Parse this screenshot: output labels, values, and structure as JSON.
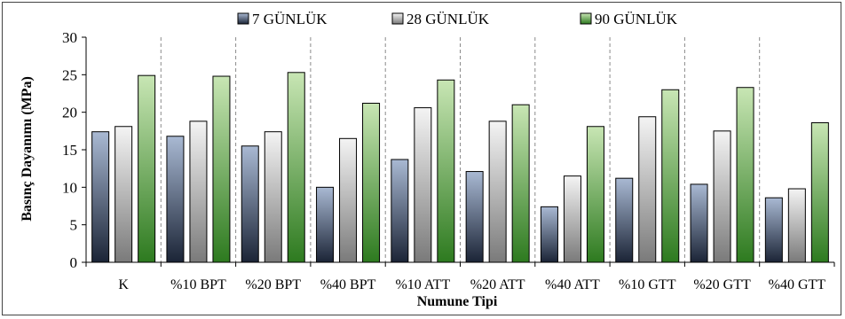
{
  "chart_data": {
    "type": "bar",
    "xlabel": "Numune Tipi",
    "ylabel": "Basınç Dayanımı (MPa)",
    "ylim": [
      0,
      30
    ],
    "yticks": [
      0,
      5,
      10,
      15,
      20,
      25,
      30
    ],
    "grid": "vertical-dashed-separators",
    "legend_position": "top",
    "categories": [
      "K",
      "%10 BPT",
      "%20 BPT",
      "%40 BPT",
      "%10 ATT",
      "%20 ATT",
      "%40 ATT",
      "%10 GTT",
      "%20 GTT",
      "%40 GTT"
    ],
    "series": [
      {
        "name": "7 GÜNLÜK",
        "color_top": "#a9b9d3",
        "color_bottom": "#1b2436",
        "values": [
          17.4,
          16.8,
          15.5,
          10.0,
          13.7,
          12.1,
          7.4,
          11.2,
          10.4,
          8.6
        ]
      },
      {
        "name": "28 GÜNLÜK",
        "color_top": "#f4f4f4",
        "color_bottom": "#7a7a7a",
        "values": [
          18.1,
          18.8,
          17.4,
          16.5,
          20.6,
          18.8,
          11.5,
          19.4,
          17.5,
          9.8
        ]
      },
      {
        "name": "90 GÜNLÜK",
        "color_top": "#c8e6b4",
        "color_bottom": "#2d7a1f",
        "values": [
          24.9,
          24.8,
          25.3,
          21.2,
          24.3,
          21.0,
          18.1,
          23.0,
          23.3,
          18.6
        ]
      }
    ]
  }
}
